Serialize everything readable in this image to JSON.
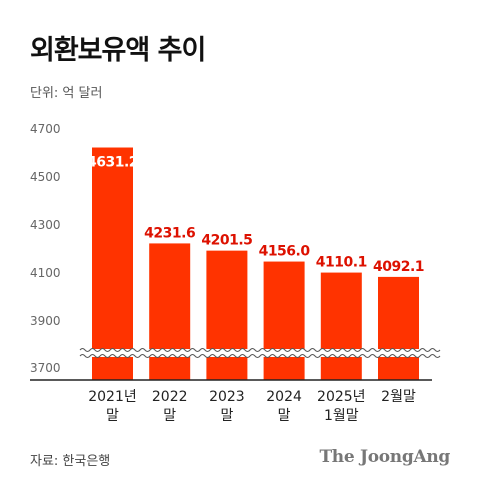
{
  "chart_data": {
    "type": "bar",
    "title": "외환보유액 추이",
    "unit": "단위: 억 달러",
    "categories": [
      [
        "2021년",
        "말"
      ],
      [
        "2022",
        "말"
      ],
      [
        "2023",
        "말"
      ],
      [
        "2024",
        "말"
      ],
      [
        "2025년",
        "1월말"
      ],
      [
        "2월말"
      ]
    ],
    "values": [
      4631.2,
      4231.6,
      4201.5,
      4156.0,
      4110.1,
      4092.1
    ],
    "value_labels": [
      "4631.2",
      "4231.6",
      "4201.5",
      "4156.0",
      "4110.1",
      "4092.1"
    ],
    "yticks": [
      "3700",
      "3900",
      "4100",
      "4300",
      "4500",
      "4700"
    ],
    "ytick_values": [
      3700,
      3900,
      4100,
      4300,
      4500,
      4700
    ],
    "axis_break": true,
    "grid": false,
    "bar_color": "#ff3300",
    "label_color": "#dd1100"
  },
  "footer": {
    "source": "자료: 한국은행",
    "publisher": "The JoongAng"
  }
}
